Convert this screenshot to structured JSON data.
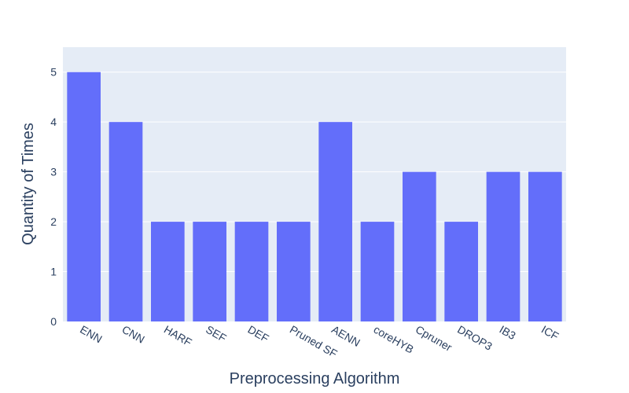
{
  "chart_data": {
    "type": "bar",
    "title": "",
    "xlabel": "Preprocessing Algorithm",
    "ylabel": "Quantity of Times",
    "categories": [
      "ENN",
      "CNN",
      "HARF",
      "SEF",
      "DEF",
      "Pruned SF",
      "AENN",
      "coreHYB",
      "Cpruner",
      "DROP3",
      "IB3",
      "ICF"
    ],
    "values": [
      5,
      4,
      2,
      2,
      2,
      2,
      4,
      2,
      3,
      2,
      3,
      3
    ],
    "ylim": [
      0,
      5.5
    ],
    "yticks": [
      0,
      1,
      2,
      3,
      4,
      5
    ],
    "grid": true,
    "legend": "none",
    "colors": {
      "bar": "#636efa",
      "plot_bg": "#e5ecf6",
      "grid": "#ffffff",
      "text": "#2a3f5f"
    }
  }
}
